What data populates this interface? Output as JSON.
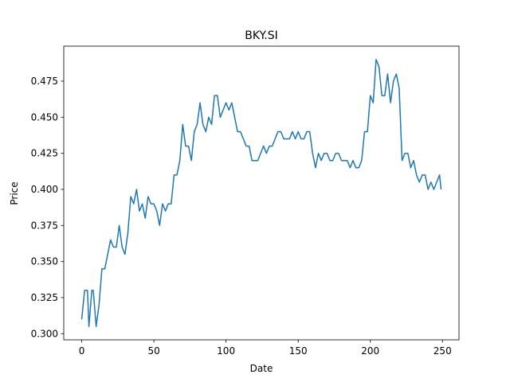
{
  "chart_data": {
    "type": "line",
    "title": "BKY.SI",
    "x_label": "Date",
    "y_label": "Price",
    "x": [
      0,
      2,
      4,
      5,
      7,
      8,
      10,
      12,
      14,
      16,
      18,
      20,
      22,
      24,
      26,
      28,
      30,
      32,
      34,
      36,
      38,
      40,
      42,
      44,
      46,
      48,
      50,
      52,
      54,
      56,
      58,
      60,
      62,
      64,
      66,
      68,
      70,
      72,
      74,
      76,
      78,
      80,
      82,
      84,
      86,
      88,
      90,
      92,
      94,
      96,
      98,
      100,
      102,
      104,
      106,
      108,
      110,
      112,
      114,
      116,
      118,
      120,
      122,
      124,
      126,
      128,
      130,
      132,
      134,
      136,
      138,
      140,
      142,
      144,
      146,
      148,
      150,
      152,
      154,
      156,
      158,
      160,
      162,
      164,
      166,
      168,
      170,
      172,
      174,
      176,
      178,
      180,
      182,
      184,
      186,
      188,
      190,
      192,
      194,
      196,
      198,
      200,
      202,
      204,
      206,
      208,
      210,
      212,
      214,
      216,
      218,
      220,
      222,
      224,
      226,
      228,
      230,
      232,
      234,
      236,
      238,
      240,
      242,
      244,
      246,
      248,
      249
    ],
    "series": [
      {
        "name": "BKY.SI",
        "color": "#1f77b4",
        "values": [
          0.31,
          0.33,
          0.33,
          0.305,
          0.33,
          0.33,
          0.305,
          0.32,
          0.345,
          0.345,
          0.355,
          0.365,
          0.36,
          0.36,
          0.375,
          0.36,
          0.355,
          0.37,
          0.395,
          0.39,
          0.4,
          0.385,
          0.39,
          0.38,
          0.395,
          0.39,
          0.39,
          0.385,
          0.375,
          0.39,
          0.385,
          0.39,
          0.39,
          0.41,
          0.41,
          0.42,
          0.445,
          0.43,
          0.43,
          0.42,
          0.44,
          0.445,
          0.46,
          0.445,
          0.44,
          0.45,
          0.445,
          0.465,
          0.465,
          0.45,
          0.455,
          0.46,
          0.455,
          0.46,
          0.45,
          0.44,
          0.44,
          0.435,
          0.43,
          0.43,
          0.42,
          0.42,
          0.42,
          0.425,
          0.43,
          0.425,
          0.43,
          0.43,
          0.435,
          0.44,
          0.44,
          0.435,
          0.435,
          0.435,
          0.44,
          0.435,
          0.44,
          0.435,
          0.435,
          0.44,
          0.44,
          0.425,
          0.415,
          0.425,
          0.42,
          0.425,
          0.425,
          0.42,
          0.42,
          0.425,
          0.425,
          0.42,
          0.42,
          0.42,
          0.415,
          0.42,
          0.415,
          0.415,
          0.42,
          0.44,
          0.44,
          0.465,
          0.46,
          0.49,
          0.485,
          0.465,
          0.465,
          0.48,
          0.46,
          0.475,
          0.48,
          0.47,
          0.42,
          0.425,
          0.425,
          0.415,
          0.42,
          0.41,
          0.405,
          0.41,
          0.41,
          0.4,
          0.405,
          0.4,
          0.405,
          0.41,
          0.4
        ]
      }
    ],
    "xlim": [
      -12.45,
      261.45
    ],
    "xticks": [
      0,
      50,
      100,
      150,
      200,
      250
    ],
    "ylim": [
      0.29575,
      0.49925
    ],
    "yticks": [
      {
        "value": 0.3,
        "label": "0.300"
      },
      0.325,
      {
        "value": 0.35,
        "label": "0.350"
      },
      0.375,
      {
        "value": 0.4,
        "label": "0.400"
      },
      0.425,
      {
        "value": 0.45,
        "label": "0.450"
      },
      0.475
    ],
    "grid": false
  }
}
